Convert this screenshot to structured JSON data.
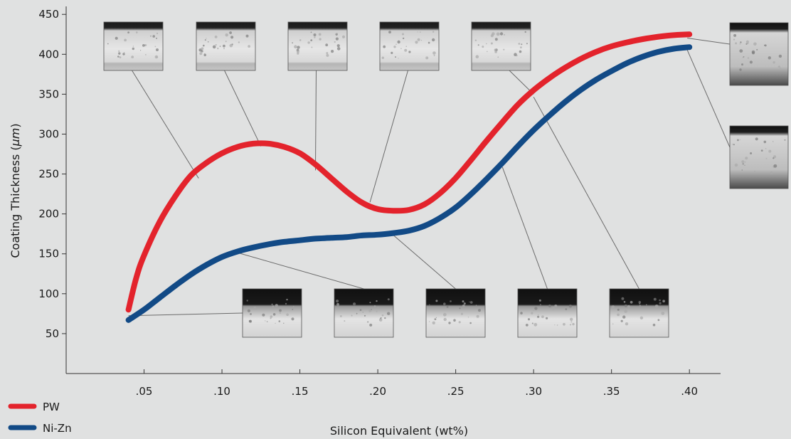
{
  "chart_data": {
    "type": "line",
    "title": "",
    "xlabel": "Silicon Equivalent (wt%)",
    "ylabel_prefix": "Coating Thickness (",
    "ylabel_unit": "μm",
    "ylabel_suffix": ")",
    "xlim": [
      0,
      0.42
    ],
    "ylim": [
      0,
      460
    ],
    "x_ticks": [
      0.05,
      0.1,
      0.15,
      0.2,
      0.25,
      0.3,
      0.35,
      0.4
    ],
    "x_tick_labels": [
      ".05",
      ".10",
      ".15",
      ".20",
      ".25",
      ".30",
      ".35",
      ".40"
    ],
    "y_ticks": [
      50,
      100,
      150,
      200,
      250,
      300,
      350,
      400,
      450
    ],
    "y_tick_labels": [
      "50",
      "100",
      "150",
      "200",
      "250",
      "300",
      "350",
      "400",
      "450"
    ],
    "grid": false,
    "legend_position": "bottom-left",
    "series": [
      {
        "name": "PW",
        "color": "#e3232c",
        "x": [
          0.04,
          0.045,
          0.05,
          0.06,
          0.07,
          0.08,
          0.09,
          0.1,
          0.11,
          0.12,
          0.13,
          0.14,
          0.15,
          0.16,
          0.17,
          0.18,
          0.19,
          0.2,
          0.21,
          0.22,
          0.23,
          0.24,
          0.25,
          0.26,
          0.27,
          0.28,
          0.29,
          0.3,
          0.31,
          0.32,
          0.33,
          0.34,
          0.35,
          0.36,
          0.37,
          0.38,
          0.39,
          0.4
        ],
        "y": [
          80,
          120,
          148,
          190,
          222,
          248,
          264,
          276,
          284,
          288,
          288,
          284,
          276,
          262,
          245,
          228,
          214,
          206,
          204,
          205,
          212,
          226,
          245,
          268,
          292,
          315,
          337,
          355,
          370,
          383,
          394,
          403,
          410,
          415,
          419,
          422,
          424,
          425
        ]
      },
      {
        "name": "Ni-Zn",
        "color": "#124a86",
        "x": [
          0.04,
          0.05,
          0.06,
          0.07,
          0.08,
          0.09,
          0.1,
          0.11,
          0.12,
          0.13,
          0.14,
          0.15,
          0.16,
          0.17,
          0.18,
          0.19,
          0.2,
          0.21,
          0.22,
          0.23,
          0.24,
          0.25,
          0.26,
          0.27,
          0.28,
          0.29,
          0.3,
          0.31,
          0.32,
          0.33,
          0.34,
          0.35,
          0.36,
          0.37,
          0.38,
          0.39,
          0.4
        ],
        "y": [
          67,
          80,
          95,
          110,
          124,
          136,
          146,
          153,
          158,
          162,
          165,
          167,
          169,
          170,
          171,
          173,
          174,
          176,
          179,
          185,
          195,
          208,
          225,
          244,
          264,
          285,
          305,
          323,
          340,
          355,
          368,
          379,
          389,
          397,
          403,
          407,
          409
        ]
      }
    ]
  },
  "insets": {
    "top": [
      {
        "name": "inset-top-1",
        "points_to": [
          0.085,
          250
        ]
      },
      {
        "name": "inset-top-2",
        "points_to": [
          0.125,
          290
        ]
      },
      {
        "name": "inset-top-3",
        "points_to": [
          0.16,
          260
        ]
      },
      {
        "name": "inset-top-4",
        "points_to": [
          0.195,
          220
        ]
      },
      {
        "name": "inset-top-5",
        "points_to": [
          0.3,
          350
        ]
      }
    ],
    "bottom": [
      {
        "name": "inset-bottom-1",
        "points_to": [
          0.04,
          76
        ]
      },
      {
        "name": "inset-bottom-2",
        "points_to": [
          0.11,
          155
        ]
      },
      {
        "name": "inset-bottom-3",
        "points_to": [
          0.21,
          177
        ]
      },
      {
        "name": "inset-bottom-4",
        "points_to": [
          0.28,
          262
        ]
      },
      {
        "name": "inset-bottom-5",
        "points_to": [
          0.3,
          350
        ]
      }
    ],
    "right": [
      {
        "name": "inset-right-1",
        "points_to": [
          0.4,
          423
        ]
      },
      {
        "name": "inset-right-2",
        "points_to": [
          0.4,
          408
        ]
      }
    ]
  }
}
